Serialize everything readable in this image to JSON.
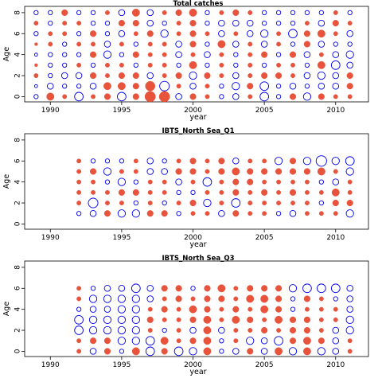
{
  "colors": {
    "positive": "#e8533c",
    "negative": "#0000ee",
    "axis": "#000000"
  },
  "chart_data": [
    {
      "type": "scatter",
      "title": "Total catches",
      "xlabel": "year",
      "ylabel": "Age",
      "xlim": [
        1988.2,
        2012.3
      ],
      "ylim": [
        -0.5,
        8.6
      ],
      "x_ticks": [
        1990,
        1995,
        2000,
        2005,
        2010
      ],
      "y_ticks": [
        0,
        2,
        4,
        6,
        8
      ],
      "ages": [
        0,
        1,
        2,
        3,
        4,
        5,
        6,
        7,
        8
      ],
      "years": [
        1989,
        1990,
        1991,
        1992,
        1993,
        1994,
        1995,
        1996,
        1997,
        1998,
        1999,
        2000,
        2001,
        2002,
        2003,
        2004,
        2005,
        2006,
        2007,
        2008,
        2009,
        2010,
        2011
      ],
      "size_encoding": "circle area ~ |residual|",
      "residuals": [
        [
          -1,
          3,
          1,
          -4,
          1,
          2,
          -4,
          2,
          6,
          6,
          -2,
          2,
          1,
          -1,
          -2,
          1,
          -4,
          -1,
          2,
          -3,
          2,
          1,
          1
        ],
        [
          -0.5,
          -2,
          -1,
          -1,
          -2,
          3,
          3,
          2,
          5,
          -5,
          1,
          -2,
          1,
          -1,
          -3,
          2,
          -4,
          -1,
          -2,
          -1,
          -2,
          -2,
          2
        ],
        [
          1,
          -1,
          -2,
          -2,
          2,
          1,
          2,
          2,
          -2,
          1,
          2,
          -3,
          2,
          1,
          -2,
          1,
          2,
          2,
          1,
          -2,
          -3,
          -2,
          2
        ],
        [
          0.5,
          -1,
          -1,
          1,
          -1,
          1,
          1,
          -1,
          1,
          1,
          -1,
          3,
          -1,
          1,
          -1,
          1,
          -1,
          1,
          1,
          -1,
          3,
          -4,
          -2
        ],
        [
          -0.5,
          -1,
          -1,
          -1,
          2,
          -3,
          -1,
          2,
          1,
          1,
          -2,
          1,
          -2,
          1,
          -1,
          1,
          2,
          -1,
          2,
          -2,
          1,
          -2,
          -3
        ],
        [
          0.5,
          1,
          -1,
          1,
          1,
          -2,
          1,
          -1,
          1,
          1,
          -2,
          2,
          -1,
          3,
          -2,
          1,
          -2,
          1,
          -1,
          2,
          -2,
          -1,
          -1
        ],
        [
          -1,
          1,
          1,
          -1,
          2,
          -1,
          -2,
          1,
          2,
          -3,
          1,
          2,
          1,
          -2,
          1,
          -2,
          -3,
          1,
          -4,
          2,
          3,
          1,
          -2
        ],
        [
          1,
          -1,
          1,
          1,
          -1,
          -1,
          2,
          2,
          -2,
          -1,
          1,
          2,
          -1,
          -2,
          -2,
          -2,
          -1,
          -1,
          -1,
          1,
          -2,
          2,
          1
        ],
        [
          -1,
          -1,
          2,
          -1,
          -1,
          1,
          -2,
          3,
          -2,
          1,
          2,
          3,
          -1,
          1,
          2,
          1,
          -1,
          -1,
          -1,
          -1,
          -1,
          1,
          -1
        ]
      ]
    },
    {
      "type": "scatter",
      "title": "IBTS_North Sea_Q1",
      "xlabel": "year",
      "ylabel": "Age",
      "xlim": [
        1988.2,
        2012.3
      ],
      "ylim": [
        -0.5,
        8.6
      ],
      "x_ticks": [
        1990,
        1995,
        2000,
        2005,
        2010
      ],
      "y_ticks": [
        0,
        2,
        4,
        6,
        8
      ],
      "ages": [
        1,
        2,
        3,
        4,
        5,
        6
      ],
      "years": [
        1992,
        1993,
        1994,
        1995,
        1996,
        1997,
        1998,
        1999,
        2000,
        2001,
        2002,
        2003,
        2004,
        2005,
        2006,
        2007,
        2008,
        2009,
        2010,
        2011
      ],
      "size_encoding": "circle area ~ |residual|",
      "residuals": [
        [
          -1,
          -2,
          2,
          -3,
          -3,
          2,
          2,
          -1,
          1,
          1,
          -2,
          2,
          1,
          1,
          -1,
          -2,
          1,
          1,
          1,
          -3
        ],
        [
          1,
          -5,
          1,
          1,
          -1,
          1,
          -1,
          1,
          2,
          -3,
          1,
          -4,
          1,
          1,
          1,
          1,
          1,
          -1,
          2,
          2
        ],
        [
          1,
          1,
          1,
          2,
          2,
          1,
          1,
          -1,
          -1,
          1,
          1,
          2,
          1,
          2,
          1,
          2,
          1,
          1,
          3,
          1
        ],
        [
          1,
          1,
          -1,
          -3,
          -1,
          1,
          1,
          -2,
          1,
          -4,
          1,
          2,
          2,
          1,
          1,
          1,
          1,
          -1,
          -2,
          1
        ],
        [
          1,
          2,
          -3,
          1,
          1,
          -2,
          -2,
          2,
          2,
          1,
          2,
          3,
          2,
          2,
          2,
          2,
          2,
          3,
          1,
          -3
        ],
        [
          1,
          -1,
          -1,
          -1,
          1,
          -2,
          -1,
          1,
          2,
          1,
          2,
          -2,
          1,
          1,
          -3,
          2,
          -3,
          -6,
          -3,
          -4
        ]
      ]
    },
    {
      "type": "scatter",
      "title": "IBTS_North Sea_Q3",
      "xlabel": "year",
      "ylabel": "Age",
      "xlim": [
        1988.2,
        2012.3
      ],
      "ylim": [
        -0.5,
        8.6
      ],
      "x_ticks": [
        1990,
        1995,
        2000,
        2005,
        2010
      ],
      "y_ticks": [
        0,
        2,
        4,
        6,
        8
      ],
      "ages": [
        0,
        1,
        2,
        3,
        4,
        5,
        6
      ],
      "years": [
        1992,
        1993,
        1994,
        1995,
        1996,
        1997,
        1998,
        1999,
        2000,
        2001,
        2002,
        2003,
        2004,
        2005,
        2006,
        2007,
        2008,
        2009,
        2010,
        2011
      ],
      "size_encoding": "circle area ~ |residual|",
      "residuals": [
        [
          1,
          -2,
          2,
          -1,
          3,
          -4,
          2,
          -4,
          -3,
          3,
          -1,
          -2,
          2,
          -2,
          3,
          -3,
          3,
          -3,
          -2,
          1
        ],
        [
          1,
          2,
          2,
          -3,
          -3,
          -4,
          3,
          1,
          2,
          3,
          -1,
          1,
          -3,
          -2,
          -4,
          2,
          3,
          2,
          -2,
          1
        ],
        [
          -4,
          -3,
          -3,
          -3,
          -3,
          1,
          -1,
          1,
          -2,
          3,
          -2,
          1,
          1,
          2,
          1,
          2,
          2,
          1,
          -2,
          -3
        ],
        [
          -4,
          -3,
          -3,
          -3,
          -3,
          2,
          1,
          1,
          2,
          3,
          1,
          3,
          2,
          1,
          3,
          2,
          2,
          1,
          1,
          -3
        ],
        [
          -1,
          -2,
          -2,
          -3,
          -3,
          1,
          2,
          1,
          3,
          2,
          1,
          2,
          1,
          3,
          2,
          -1,
          1,
          1,
          1,
          -2
        ],
        [
          1,
          -3,
          -3,
          -3,
          -3,
          -2,
          1,
          2,
          1,
          2,
          2,
          1,
          3,
          3,
          2,
          -1,
          2,
          1,
          -1,
          -2
        ],
        [
          1,
          -1,
          -2,
          -2,
          -4,
          -2,
          2,
          2,
          -1,
          2,
          3,
          1,
          2,
          2,
          2,
          -3,
          -4,
          -4,
          -4,
          -2
        ]
      ]
    }
  ]
}
